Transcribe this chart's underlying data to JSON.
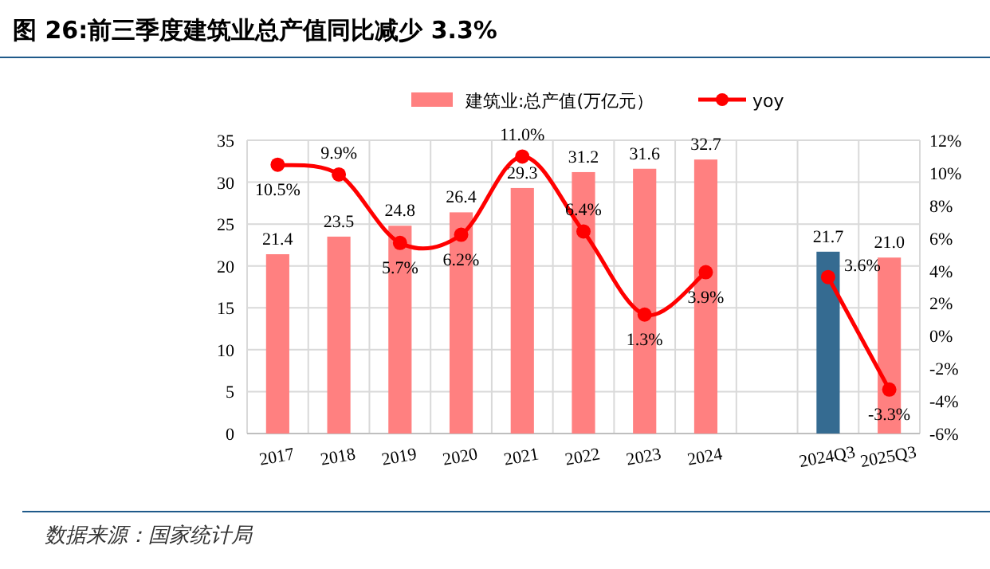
{
  "chart_data": {
    "type": "bar",
    "title": "图 26:前三季度建筑业总产值同比减少 3.3%",
    "categories": [
      "2017",
      "2018",
      "2019",
      "2020",
      "2021",
      "2022",
      "2023",
      "2024",
      null,
      "2024Q3",
      "2025Q3"
    ],
    "series": [
      {
        "name": "建筑业:总产值(万亿元）",
        "color": "#ff8080",
        "colors": [
          "#ff8080",
          "#ff8080",
          "#ff8080",
          "#ff8080",
          "#ff8080",
          "#ff8080",
          "#ff8080",
          "#ff8080",
          null,
          "#356b91",
          "#ff8080"
        ],
        "values": [
          21.4,
          23.5,
          24.8,
          26.4,
          29.3,
          31.2,
          31.6,
          32.7,
          null,
          21.7,
          21.0
        ],
        "value_labels": [
          "21.4",
          "23.5",
          "24.8",
          "26.4",
          "29.3",
          "31.2",
          "31.6",
          "32.7",
          null,
          "21.7",
          "21.0"
        ]
      },
      {
        "name": "yoy",
        "type": "line",
        "axis": "y2",
        "color": "#ff0000",
        "values": [
          10.5,
          9.9,
          5.7,
          6.2,
          11.0,
          6.4,
          1.3,
          3.9,
          null,
          3.6,
          -3.3
        ],
        "value_labels": [
          "10.5%",
          "9.9%",
          "5.7%",
          "6.2%",
          "11.0%",
          "6.4%",
          "1.3%",
          "3.9%",
          null,
          "3.6%",
          "-3.3%"
        ]
      }
    ],
    "ylim": [
      0,
      35
    ],
    "yticks": [
      0,
      5,
      10,
      15,
      20,
      25,
      30,
      35
    ],
    "y2lim": [
      -6,
      12
    ],
    "y2ticks": [
      {
        "value": -6,
        "label": "-6%"
      },
      {
        "value": -4,
        "label": "-4%"
      },
      {
        "value": -2,
        "label": "-2%"
      },
      {
        "value": 0,
        "label": "0%"
      },
      {
        "value": 2,
        "label": "2%"
      },
      {
        "value": 4,
        "label": "4%"
      },
      {
        "value": 6,
        "label": "6%"
      },
      {
        "value": 8,
        "label": "8%"
      },
      {
        "value": 10,
        "label": "10%"
      },
      {
        "value": 12,
        "label": "12%"
      }
    ],
    "grid": true,
    "legend": "top",
    "marker": "circle",
    "line_style": "solid",
    "annotations": [
      "数据来源：国家统计局"
    ]
  }
}
